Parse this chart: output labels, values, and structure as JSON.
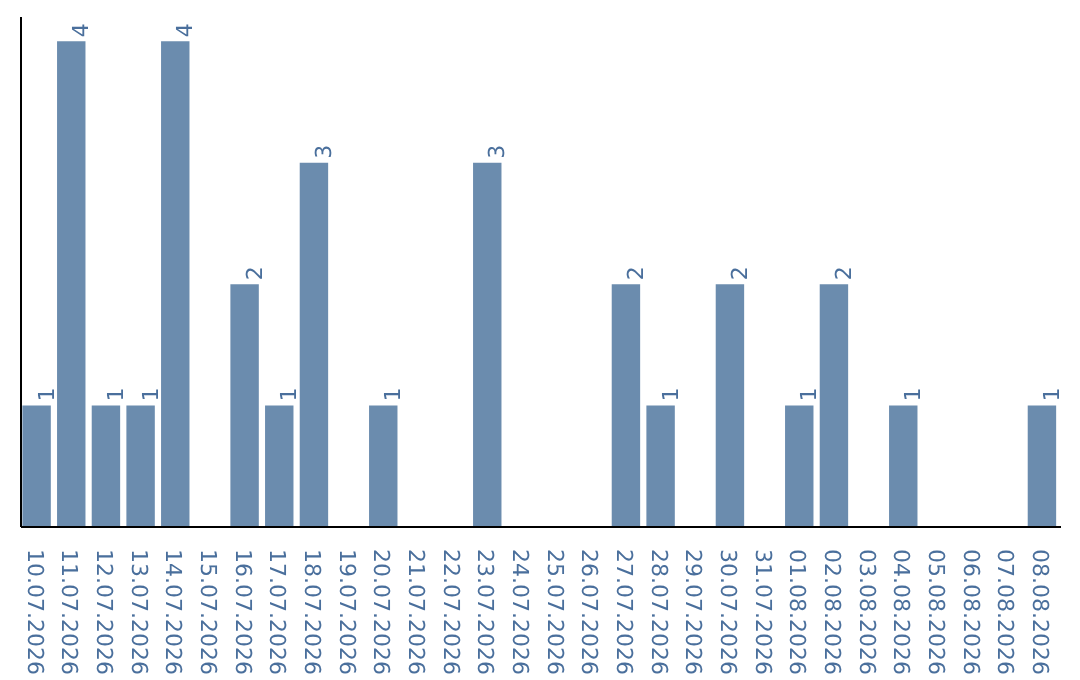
{
  "chart_data": {
    "type": "bar",
    "categories": [
      "10.07.2026",
      "11.07.2026",
      "12.07.2026",
      "13.07.2026",
      "14.07.2026",
      "15.07.2026",
      "16.07.2026",
      "17.07.2026",
      "18.07.2026",
      "19.07.2026",
      "20.07.2026",
      "21.07.2026",
      "22.07.2026",
      "23.07.2026",
      "24.07.2026",
      "25.07.2026",
      "26.07.2026",
      "27.07.2026",
      "28.07.2026",
      "29.07.2026",
      "30.07.2026",
      "31.07.2026",
      "01.08.2026",
      "02.08.2026",
      "03.08.2026",
      "04.08.2026",
      "05.08.2026",
      "06.08.2026",
      "07.08.2026",
      "08.08.2026"
    ],
    "values": [
      1,
      4,
      1,
      1,
      4,
      0,
      2,
      1,
      3,
      0,
      1,
      0,
      0,
      3,
      0,
      0,
      0,
      2,
      1,
      0,
      2,
      0,
      1,
      2,
      0,
      1,
      0,
      0,
      0,
      1
    ],
    "value_labels": [
      "1",
      "4",
      "1",
      "1",
      "4",
      null,
      "2",
      "1",
      "3",
      null,
      "1",
      null,
      null,
      "3",
      null,
      null,
      null,
      "2",
      "1",
      null,
      "2",
      null,
      "1",
      "2",
      null,
      "1",
      null,
      null,
      null,
      "1"
    ],
    "color": "#6b8cae",
    "ylim": [
      0,
      4.2
    ],
    "tick_labels": "x",
    "grid": false
  }
}
